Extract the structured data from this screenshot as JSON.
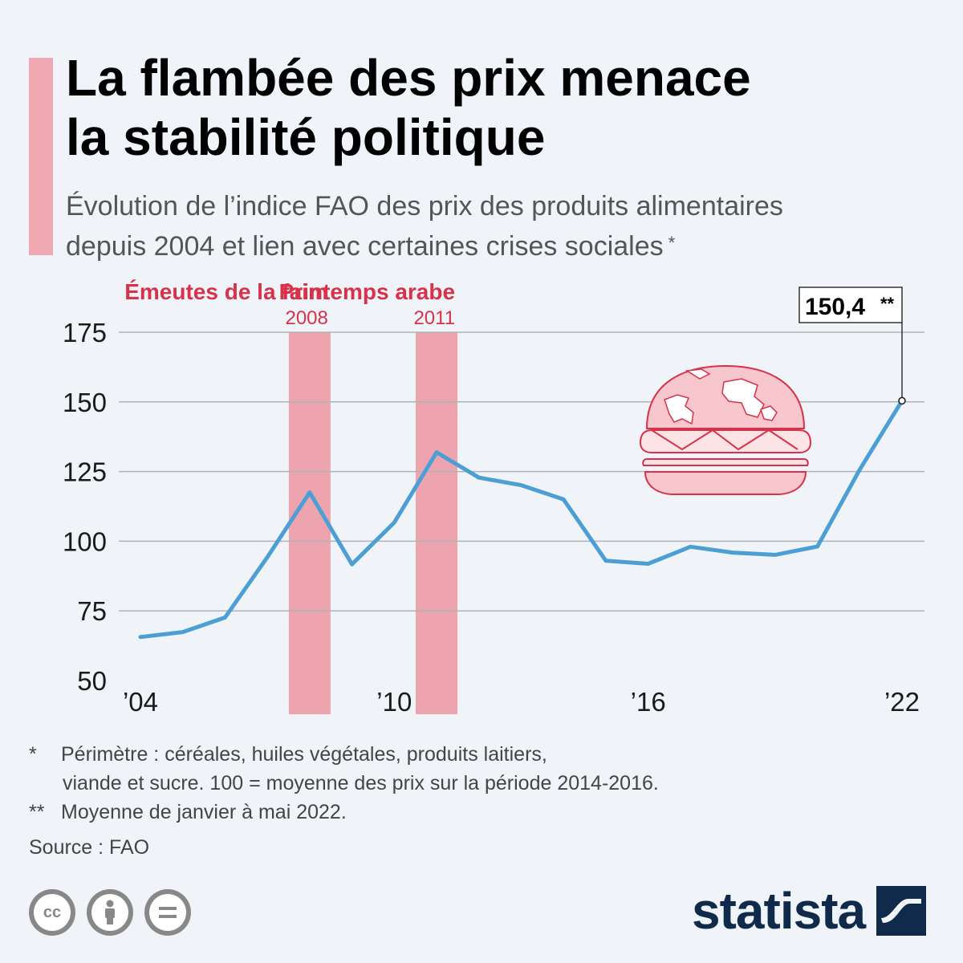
{
  "title_line1": "La flambée des prix menace",
  "title_line2": "la stabilité politique",
  "subtitle_line1": "Évolution de l’indice FAO des prix des produits alimentaires",
  "subtitle_line2": "depuis 2004 et lien avec certaines crises sociales",
  "subtitle_mark": "*",
  "colors": {
    "background": "#f0f4f8",
    "accent": "#f0a9b3",
    "crisis_band": "#eda4ae",
    "crisis_text": "#d8324a",
    "line": "#4b9fd5",
    "brand": "#0f2a4a"
  },
  "chart_data": {
    "type": "line",
    "x": [
      2004,
      2005,
      2006,
      2007,
      2008,
      2009,
      2010,
      2011,
      2012,
      2013,
      2014,
      2015,
      2016,
      2017,
      2018,
      2019,
      2020,
      2021,
      2022
    ],
    "series": [
      {
        "values": [
          65.6,
          67.4,
          72.6,
          94.3,
          117.5,
          91.7,
          106.7,
          131.9,
          122.8,
          120.1,
          115.0,
          93.0,
          91.9,
          98.0,
          95.9,
          95.1,
          98.1,
          125.7,
          150.4
        ]
      }
    ],
    "x_ticks": [
      2004,
      2010,
      2016,
      2022
    ],
    "x_tick_labels": [
      "’04",
      "’10",
      "’16",
      "’22"
    ],
    "y_ticks": [
      50,
      75,
      100,
      125,
      150,
      175
    ],
    "ylim": [
      50,
      175
    ],
    "grid": true,
    "bands": [
      {
        "label": "Émeutes de la faim",
        "year_label": "2008",
        "year": 2008
      },
      {
        "label": "Printemps arabe",
        "year_label": "2011",
        "year": 2011
      }
    ],
    "annotation": {
      "year": 2022,
      "value": 150.4,
      "text": "150,4",
      "mark": "**"
    }
  },
  "footnotes": {
    "n1_mark": "*",
    "n1_line1": "Périmètre : céréales, huiles végétales, produits laitiers,",
    "n1_line2": "viande et sucre. 100 = moyenne des prix sur la période 2014-2016.",
    "n2_mark": "**",
    "n2_text": "Moyenne de janvier à mai 2022.",
    "source": "Source : FAO"
  },
  "license_icons": [
    "creative-commons-icon",
    "attribution-icon",
    "no-derivatives-icon"
  ],
  "license_cc_text": "cc",
  "brand": {
    "name": "statista"
  }
}
